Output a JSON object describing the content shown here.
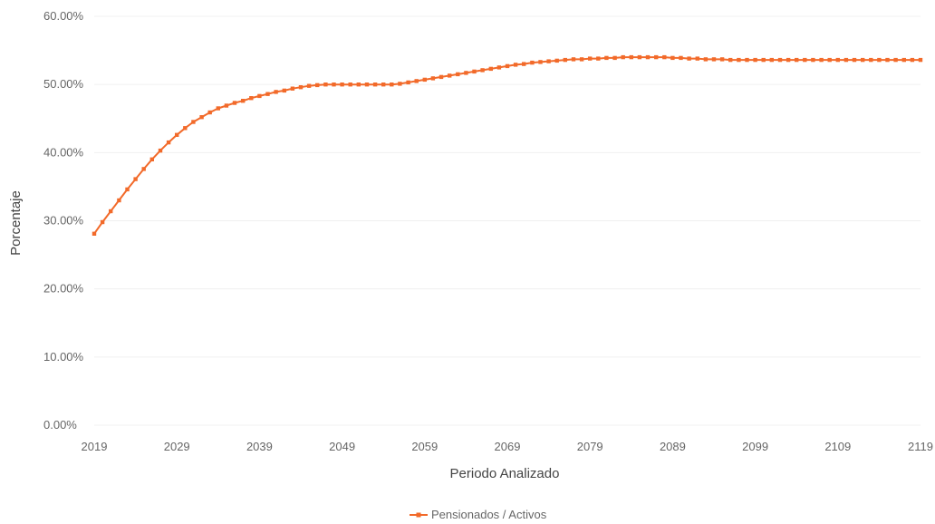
{
  "chart_data": {
    "type": "line",
    "title": "",
    "xlabel": "Periodo Analizado",
    "ylabel": "Porcentaje",
    "ylim": [
      0,
      60
    ],
    "y_ticks": [
      "0.00%",
      "10.00%",
      "20.00%",
      "30.00%",
      "40.00%",
      "50.00%",
      "60.00%"
    ],
    "x_range": [
      2019,
      2119
    ],
    "x_ticks": [
      "2019",
      "2029",
      "2039",
      "2049",
      "2059",
      "2069",
      "2079",
      "2089",
      "2099",
      "2109",
      "2119"
    ],
    "grid": true,
    "legend": "bottom-center",
    "color": "#f26a2a",
    "series": [
      {
        "name": "Pensionados / Activos",
        "points": [
          [
            2019,
            28.1
          ],
          [
            2020,
            29.8
          ],
          [
            2021,
            31.4
          ],
          [
            2022,
            33.0
          ],
          [
            2023,
            34.6
          ],
          [
            2024,
            36.1
          ],
          [
            2025,
            37.6
          ],
          [
            2026,
            39.0
          ],
          [
            2027,
            40.3
          ],
          [
            2028,
            41.5
          ],
          [
            2029,
            42.6
          ],
          [
            2030,
            43.6
          ],
          [
            2031,
            44.5
          ],
          [
            2032,
            45.2
          ],
          [
            2033,
            45.9
          ],
          [
            2034,
            46.5
          ],
          [
            2035,
            46.9
          ],
          [
            2036,
            47.3
          ],
          [
            2037,
            47.6
          ],
          [
            2038,
            48.0
          ],
          [
            2039,
            48.3
          ],
          [
            2040,
            48.6
          ],
          [
            2041,
            48.9
          ],
          [
            2042,
            49.1
          ],
          [
            2043,
            49.4
          ],
          [
            2044,
            49.6
          ],
          [
            2045,
            49.8
          ],
          [
            2046,
            49.9
          ],
          [
            2047,
            50.0
          ],
          [
            2048,
            50.0
          ],
          [
            2049,
            50.0
          ],
          [
            2050,
            50.0
          ],
          [
            2051,
            50.0
          ],
          [
            2052,
            50.0
          ],
          [
            2053,
            50.0
          ],
          [
            2054,
            50.0
          ],
          [
            2055,
            50.0
          ],
          [
            2056,
            50.1
          ],
          [
            2057,
            50.3
          ],
          [
            2058,
            50.5
          ],
          [
            2059,
            50.7
          ],
          [
            2060,
            50.9
          ],
          [
            2061,
            51.1
          ],
          [
            2062,
            51.3
          ],
          [
            2063,
            51.5
          ],
          [
            2064,
            51.7
          ],
          [
            2065,
            51.9
          ],
          [
            2066,
            52.1
          ],
          [
            2067,
            52.3
          ],
          [
            2068,
            52.5
          ],
          [
            2069,
            52.7
          ],
          [
            2070,
            52.9
          ],
          [
            2071,
            53.0
          ],
          [
            2072,
            53.2
          ],
          [
            2073,
            53.3
          ],
          [
            2074,
            53.4
          ],
          [
            2075,
            53.5
          ],
          [
            2076,
            53.6
          ],
          [
            2077,
            53.7
          ],
          [
            2078,
            53.7
          ],
          [
            2079,
            53.8
          ],
          [
            2080,
            53.8
          ],
          [
            2081,
            53.9
          ],
          [
            2082,
            53.9
          ],
          [
            2083,
            54.0
          ],
          [
            2084,
            54.0
          ],
          [
            2085,
            54.0
          ],
          [
            2086,
            54.0
          ],
          [
            2087,
            54.0
          ],
          [
            2088,
            54.0
          ],
          [
            2089,
            53.9
          ],
          [
            2090,
            53.9
          ],
          [
            2091,
            53.8
          ],
          [
            2092,
            53.8
          ],
          [
            2093,
            53.7
          ],
          [
            2094,
            53.7
          ],
          [
            2095,
            53.7
          ],
          [
            2096,
            53.6
          ],
          [
            2097,
            53.6
          ],
          [
            2098,
            53.6
          ],
          [
            2099,
            53.6
          ],
          [
            2100,
            53.6
          ],
          [
            2101,
            53.6
          ],
          [
            2102,
            53.6
          ],
          [
            2103,
            53.6
          ],
          [
            2104,
            53.6
          ],
          [
            2105,
            53.6
          ],
          [
            2106,
            53.6
          ],
          [
            2107,
            53.6
          ],
          [
            2108,
            53.6
          ],
          [
            2109,
            53.6
          ],
          [
            2110,
            53.6
          ],
          [
            2111,
            53.6
          ],
          [
            2112,
            53.6
          ],
          [
            2113,
            53.6
          ],
          [
            2114,
            53.6
          ],
          [
            2115,
            53.6
          ],
          [
            2116,
            53.6
          ],
          [
            2117,
            53.6
          ],
          [
            2118,
            53.6
          ],
          [
            2119,
            53.6
          ]
        ]
      }
    ]
  }
}
